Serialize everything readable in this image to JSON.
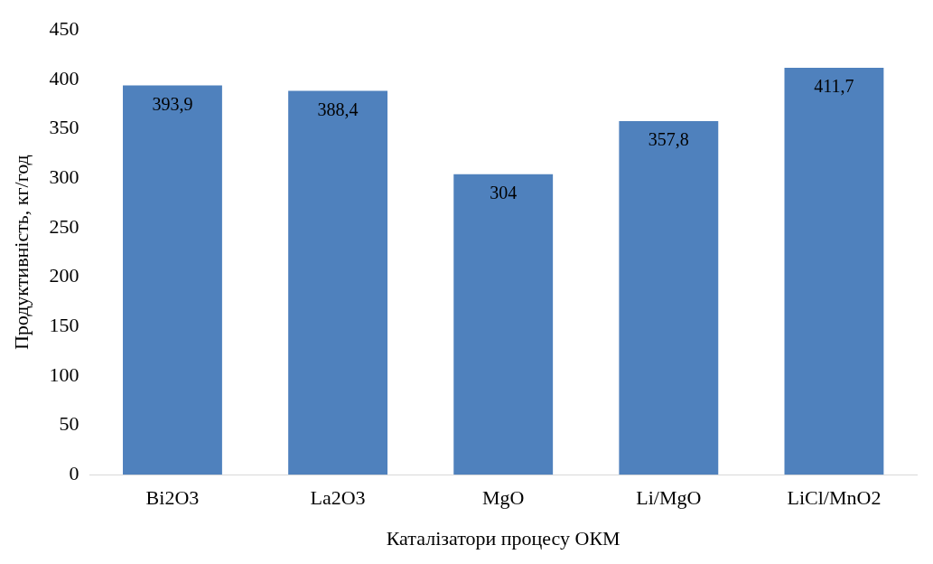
{
  "chart_data": {
    "type": "bar",
    "xlabel": "Каталізатори процесу ОКМ",
    "ylabel": "Продуктивність, кг/год",
    "categories": [
      "Bi2O3",
      "La2O3",
      "MgO",
      "Li/MgO",
      "LiCl/MnO2"
    ],
    "values": [
      393.9,
      388.4,
      304,
      357.8,
      411.7
    ],
    "value_labels": [
      "393,9",
      "388,4",
      "304",
      "357,8",
      "411,7"
    ],
    "color": "#4f81bd",
    "ylim": [
      0,
      450
    ],
    "yticks": [
      0,
      50,
      100,
      150,
      200,
      250,
      300,
      350,
      400,
      450
    ],
    "grid": false
  }
}
